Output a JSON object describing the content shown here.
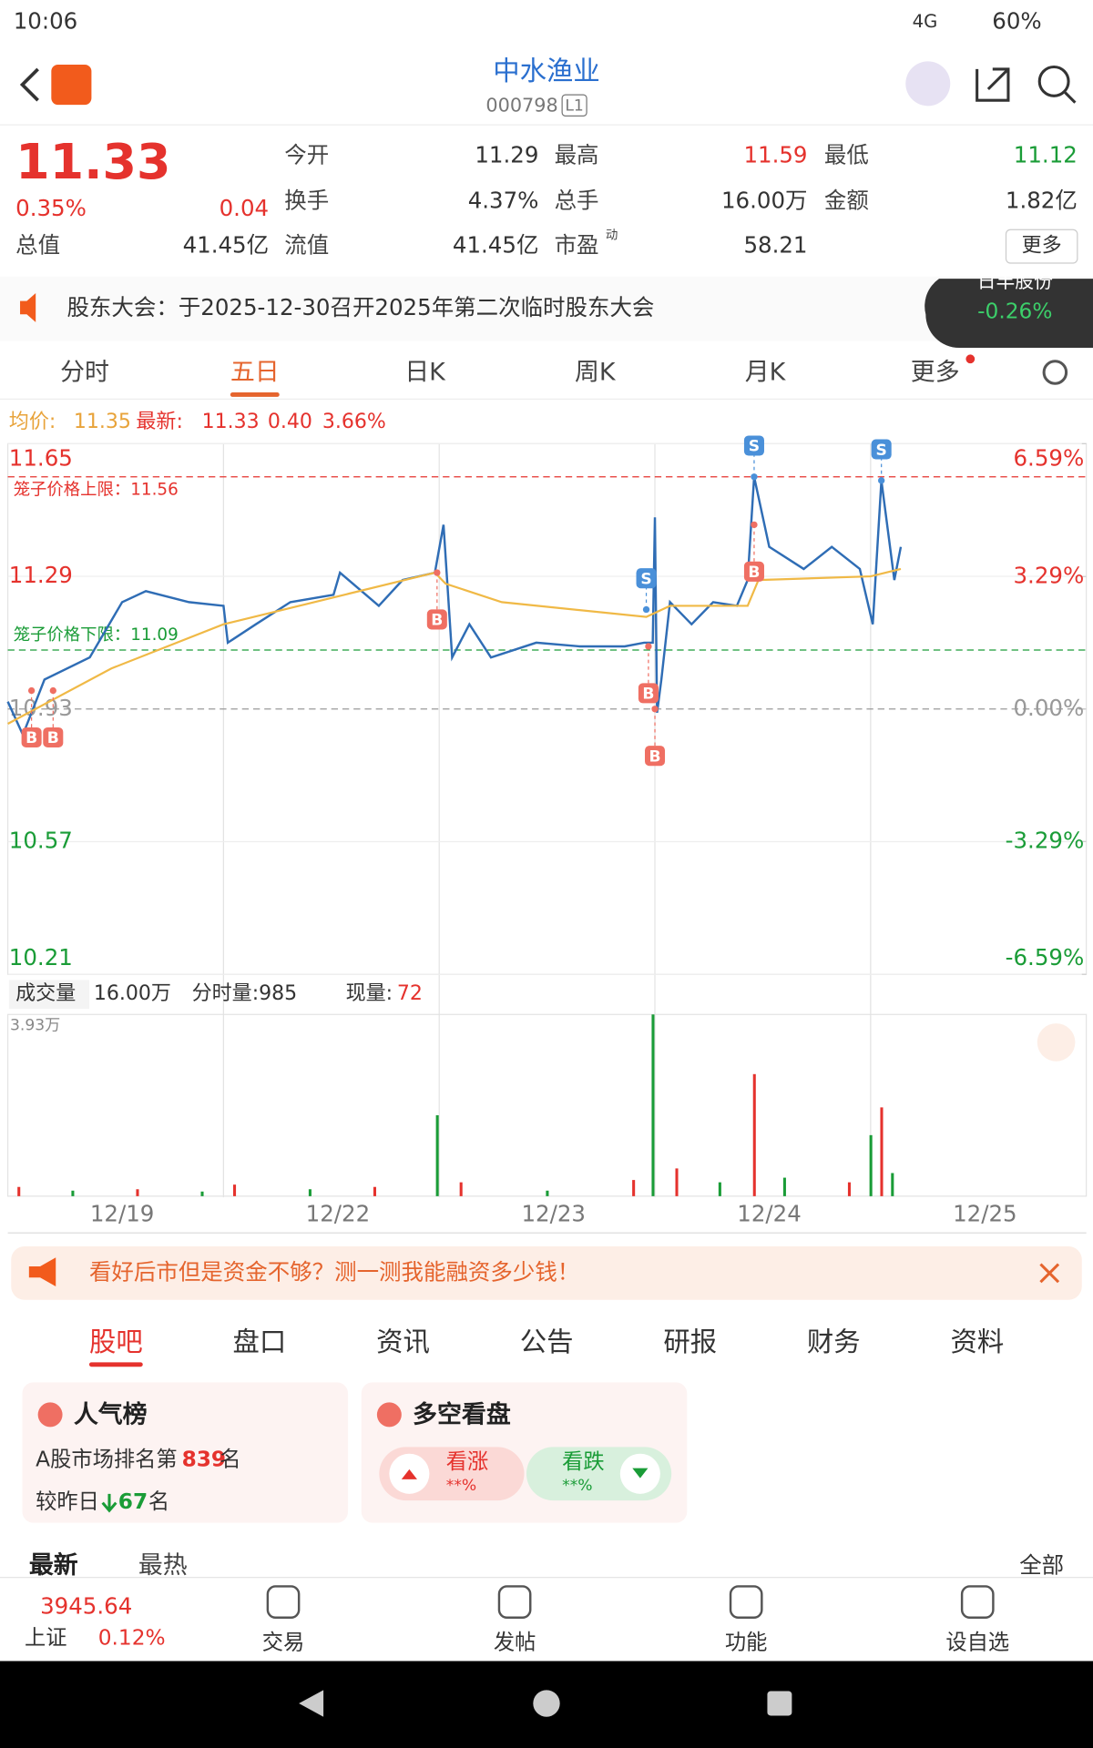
{
  "status": {
    "time": "10:06",
    "network": "4G",
    "battery": "60%"
  },
  "header": {
    "title": "中水渔业",
    "code": "000798",
    "badge": "L1"
  },
  "quote": {
    "price": "11.33",
    "percent": "0.35%",
    "change": "0.04",
    "fields": [
      {
        "label": "今开",
        "value": "11.29"
      },
      {
        "label": "最高",
        "value": "11.59"
      },
      {
        "label": "最低",
        "value": "11.12"
      },
      {
        "label": "换手",
        "value": "4.37%"
      },
      {
        "label": "总手",
        "value": "16.00万"
      },
      {
        "label": "金额",
        "value": "1.82亿"
      },
      {
        "label": "总值",
        "value": "41.45亿"
      },
      {
        "label": "流值",
        "value": "41.45亿"
      },
      {
        "label": "市盈",
        "value": "58.21"
      }
    ],
    "pe_tag": "动",
    "more": "更多"
  },
  "notice": "股东大会：于2025-12-30召开2025年第二次临时股东大会",
  "float": {
    "name": "日丰股份",
    "percent": "-0.26%"
  },
  "tabs": [
    "分时",
    "五日",
    "日K",
    "周K",
    "月K",
    "更多"
  ],
  "active_tab": 1,
  "info": {
    "avg_label": "均价:",
    "avg": "11.35",
    "last_label": "最新:",
    "last": "11.33",
    "change": "0.40",
    "percent": "3.66%"
  },
  "chart_data": [
    {
      "type": "line",
      "xlim": [
        0,
        5
      ],
      "ylim": [
        10.21,
        11.65
      ],
      "yticks": [
        10.21,
        10.57,
        10.93,
        11.29,
        11.65
      ],
      "y2lim": [
        -6.59,
        6.59
      ],
      "y2ticks": [
        {
          "value": -6.59,
          "label": "-6.59%"
        },
        {
          "value": -3.29,
          "label": "-3.29%"
        },
        {
          "value": 0,
          "label": "0.00%"
        },
        {
          "value": 3.29,
          "label": "3.29%"
        },
        {
          "value": 6.59,
          "label": "6.59%"
        }
      ],
      "upper_limit": {
        "label": "笼子价格上限：11.56",
        "value": 11.56
      },
      "lower_limit": {
        "label": "笼子价格下限：11.09",
        "value": 11.09
      },
      "categories": [
        "12/19",
        "12/22",
        "12/23",
        "12/24",
        "12/25"
      ],
      "series": [
        {
          "color": "#2f6db5",
          "x": [
            0,
            0.07,
            0.17,
            0.38,
            0.53,
            0.64,
            0.84,
            1.0,
            1.02,
            1.15,
            1.31,
            1.51,
            1.54,
            1.72,
            1.83,
            1.98,
            2.02,
            2.06,
            2.14,
            2.24,
            2.45,
            2.65,
            2.86,
            2.95,
            2.99,
            3.0,
            3.01,
            3.03,
            3.07,
            3.17,
            3.27,
            3.38,
            3.43,
            3.46,
            3.53,
            3.69,
            3.82,
            3.95,
            4.01,
            4.05,
            4.11,
            4.14
          ],
          "values": [
            10.95,
            10.86,
            11.01,
            11.07,
            11.22,
            11.25,
            11.22,
            11.21,
            11.11,
            11.16,
            11.22,
            11.24,
            11.3,
            11.21,
            11.28,
            11.3,
            11.43,
            11.07,
            11.16,
            11.07,
            11.11,
            11.1,
            11.1,
            11.11,
            11.11,
            11.45,
            10.92,
            11.01,
            11.22,
            11.16,
            11.22,
            11.21,
            11.28,
            11.56,
            11.37,
            11.31,
            11.37,
            11.31,
            11.16,
            11.55,
            11.28,
            11.37
          ]
        },
        {
          "color": "#f0b946",
          "x": [
            0,
            0.48,
            1.0,
            1.98,
            2.03,
            2.29,
            2.96,
            3.07,
            3.43,
            3.48,
            4.0,
            4.14
          ],
          "values": [
            10.89,
            11.04,
            11.16,
            11.3,
            11.27,
            11.22,
            11.18,
            11.21,
            11.21,
            11.28,
            11.29,
            11.31
          ]
        }
      ],
      "markers": [
        {
          "label": "B",
          "x": 0.11,
          "value": 10.98
        },
        {
          "label": "B",
          "x": 0.21,
          "value": 10.98
        },
        {
          "label": "B",
          "x": 1.99,
          "value": 11.3
        },
        {
          "label": "S",
          "x": 2.96,
          "value": 11.2
        },
        {
          "label": "B",
          "x": 2.97,
          "value": 11.1
        },
        {
          "label": "B",
          "x": 3.0,
          "value": 10.93
        },
        {
          "label": "S",
          "x": 3.46,
          "value": 11.56
        },
        {
          "label": "B",
          "x": 3.46,
          "value": 11.43
        },
        {
          "label": "S",
          "x": 4.05,
          "value": 11.55
        }
      ]
    },
    {
      "type": "bar",
      "title": "成交量",
      "total": "16.00万",
      "minute": "分时量:985",
      "now_label": "现量:",
      "now": "72",
      "max_label": "3.93万",
      "xlim": [
        0,
        5
      ],
      "ylim": [
        0,
        3.93
      ],
      "x": [
        0.05,
        0.3,
        0.6,
        0.9,
        1.05,
        1.4,
        1.7,
        1.99,
        2.1,
        2.5,
        2.9,
        2.99,
        3.1,
        3.3,
        3.46,
        3.6,
        3.9,
        4.0,
        4.05,
        4.1
      ],
      "values": [
        0.2,
        0.12,
        0.15,
        0.1,
        0.25,
        0.15,
        0.2,
        1.75,
        0.3,
        0.12,
        0.35,
        3.93,
        0.6,
        0.3,
        2.64,
        0.4,
        0.3,
        1.32,
        1.92,
        0.5
      ]
    }
  ],
  "ad": "看好后市但是资金不够？测一测我能融资多少钱！",
  "section_tabs": [
    "股吧",
    "盘口",
    "资讯",
    "公告",
    "研报",
    "财务",
    "资料"
  ],
  "cards": {
    "popular": {
      "title": "人气榜",
      "rank_prefix": "A股市场排名第",
      "rank": "839",
      "rank_suffix": "名",
      "change_prefix": "较昨日",
      "change": "67",
      "change_suffix": "名"
    },
    "sentiment": {
      "title": "多空看盘",
      "bull": "看涨",
      "bull_pct": "**%",
      "bear": "看跌",
      "bear_pct": "**%"
    }
  },
  "filters": {
    "newest": "最新",
    "hottest": "最热",
    "all": "全部"
  },
  "footer": {
    "index_value": "3945.64",
    "index_name": "上证",
    "index_pct": "0.12%",
    "nav": [
      "交易",
      "发帖",
      "功能",
      "设自选"
    ]
  }
}
